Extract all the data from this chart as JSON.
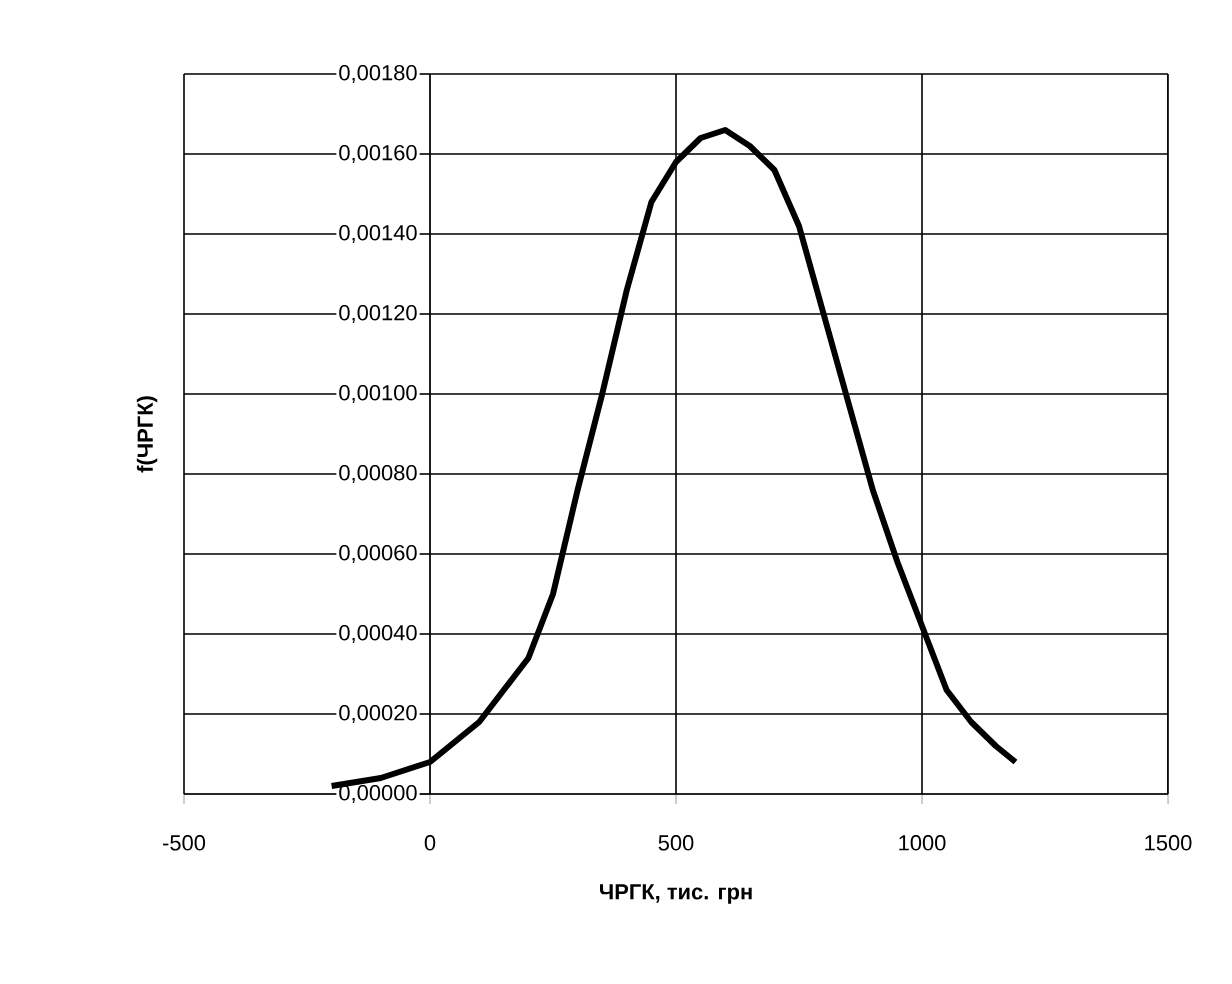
{
  "chart_data": {
    "type": "line",
    "xlabel": "ЧРГК, тис. грн",
    "ylabel": "f(ЧРГК)",
    "x": [
      -200,
      -100,
      0,
      100,
      200,
      250,
      300,
      350,
      400,
      450,
      500,
      550,
      600,
      650,
      700,
      750,
      800,
      850,
      900,
      950,
      1000,
      1050,
      1100,
      1150,
      1190
    ],
    "series": [
      {
        "color": "#000000",
        "values": [
          2e-05,
          4e-05,
          8e-05,
          0.00018,
          0.00034,
          0.0005,
          0.00076,
          0.001,
          0.00126,
          0.00148,
          0.00158,
          0.00164,
          0.00166,
          0.00162,
          0.00156,
          0.00142,
          0.0012,
          0.00098,
          0.00076,
          0.00058,
          0.00042,
          0.00026,
          0.00018,
          0.00012,
          8e-05
        ]
      }
    ],
    "xlim": [
      -500,
      1500
    ],
    "xticks": [
      -500,
      0,
      500,
      1000,
      1500
    ],
    "ylim": [
      0,
      0.0018
    ],
    "yticks": [
      {
        "value": 0,
        "label": "0,00000"
      },
      {
        "value": 0.0002,
        "label": "0,00020"
      },
      {
        "value": 0.0004,
        "label": "0,00040"
      },
      {
        "value": 0.0006,
        "label": "0,00060"
      },
      {
        "value": 0.0008,
        "label": "0,00080"
      },
      {
        "value": 0.001,
        "label": "0,00100"
      },
      {
        "value": 0.0012,
        "label": "0,00120"
      },
      {
        "value": 0.0014,
        "label": "0,00140"
      },
      {
        "value": 0.0016,
        "label": "0,00160"
      },
      {
        "value": 0.0018,
        "label": "0,00180"
      }
    ],
    "grid": true,
    "marker": "none",
    "line_style": "solid"
  }
}
